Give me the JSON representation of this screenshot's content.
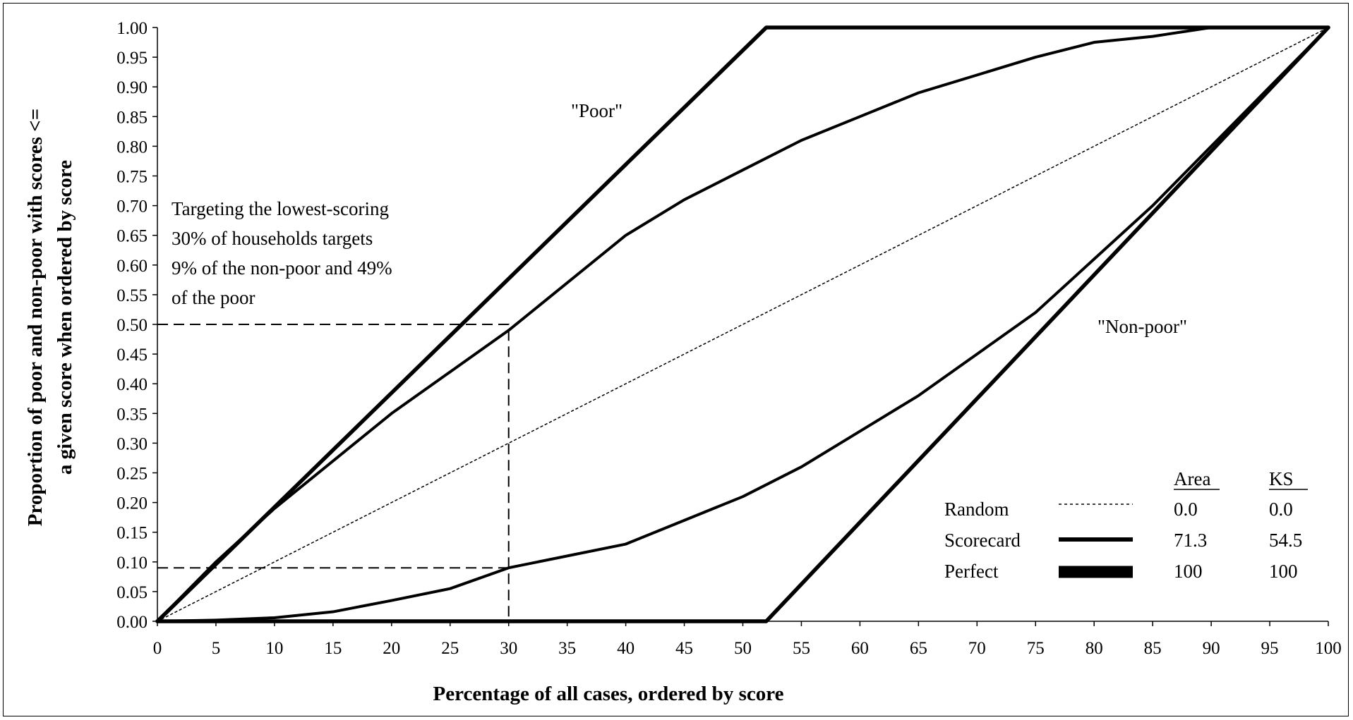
{
  "chart_data": {
    "type": "line",
    "title": "",
    "xlabel": "Percentage of all cases, ordered by score",
    "ylabel": [
      "Proportion of poor and non-poor with scores <=",
      "a given score when ordered by score"
    ],
    "xlim": [
      0,
      100
    ],
    "ylim": [
      0,
      1
    ],
    "x_ticks": [
      "0",
      "5",
      "10",
      "15",
      "20",
      "25",
      "30",
      "35",
      "40",
      "45",
      "50",
      "55",
      "60",
      "65",
      "70",
      "75",
      "80",
      "85",
      "90",
      "95",
      "100"
    ],
    "y_ticks": [
      "0.00",
      "0.05",
      "0.10",
      "0.15",
      "0.20",
      "0.25",
      "0.30",
      "0.35",
      "0.40",
      "0.45",
      "0.50",
      "0.55",
      "0.60",
      "0.65",
      "0.70",
      "0.75",
      "0.80",
      "0.85",
      "0.90",
      "0.95",
      "1.00"
    ],
    "grid": false,
    "series": [
      {
        "name": "Random",
        "style": "dotted",
        "x": [
          0,
          100
        ],
        "y": [
          0,
          1
        ]
      },
      {
        "name": "Scorecard",
        "style": "thick",
        "curves": [
          {
            "label": "\"Poor\"",
            "x": [
              0,
              5,
              10,
              15,
              20,
              25,
              30,
              35,
              40,
              45,
              50,
              55,
              60,
              65,
              70,
              75,
              80,
              85,
              90,
              95,
              100
            ],
            "y": [
              0,
              0.1,
              0.19,
              0.27,
              0.35,
              0.42,
              0.49,
              0.57,
              0.65,
              0.71,
              0.76,
              0.81,
              0.85,
              0.89,
              0.92,
              0.95,
              0.975,
              0.985,
              1.0,
              1.0,
              1.0
            ]
          },
          {
            "label": "\"Non-poor\"",
            "x": [
              0,
              5,
              10,
              15,
              20,
              25,
              30,
              35,
              40,
              45,
              50,
              55,
              60,
              65,
              70,
              75,
              80,
              85,
              90,
              95,
              100
            ],
            "y": [
              0,
              0.002,
              0.006,
              0.016,
              0.035,
              0.055,
              0.09,
              0.11,
              0.13,
              0.17,
              0.21,
              0.26,
              0.32,
              0.38,
              0.45,
              0.52,
              0.61,
              0.7,
              0.8,
              0.9,
              1.0
            ]
          }
        ]
      },
      {
        "name": "Perfect",
        "style": "thickest",
        "curves": [
          {
            "x": [
              0,
              52,
              100
            ],
            "y": [
              0,
              1,
              1
            ]
          },
          {
            "x": [
              0,
              52,
              100
            ],
            "y": [
              0,
              0,
              1
            ]
          }
        ]
      }
    ],
    "reference_lines": [
      {
        "points": [
          [
            0,
            0.5
          ],
          [
            30,
            0.5
          ],
          [
            30,
            0
          ]
        ]
      },
      {
        "points": [
          [
            0,
            0.09
          ],
          [
            30,
            0.09
          ]
        ]
      }
    ],
    "annotations": {
      "targeting": [
        "Targeting the lowest-scoring",
        "30% of households targets",
        "9% of the non-poor and 49%",
        "of the poor"
      ],
      "poor_label": "\"Poor\"",
      "nonpoor_label": "\"Non-poor\""
    },
    "legend": {
      "position": "bottom-right",
      "headers": {
        "area": "Area",
        "ks": "KS"
      },
      "rows": [
        {
          "name": "Random",
          "area": "0.0",
          "ks": "0.0",
          "line_style": "dotted"
        },
        {
          "name": "Scorecard",
          "area": "71.3",
          "ks": "54.5",
          "line_style": "thick"
        },
        {
          "name": "Perfect",
          "area": "100",
          "ks": "100",
          "line_style": "thickest"
        }
      ]
    }
  }
}
